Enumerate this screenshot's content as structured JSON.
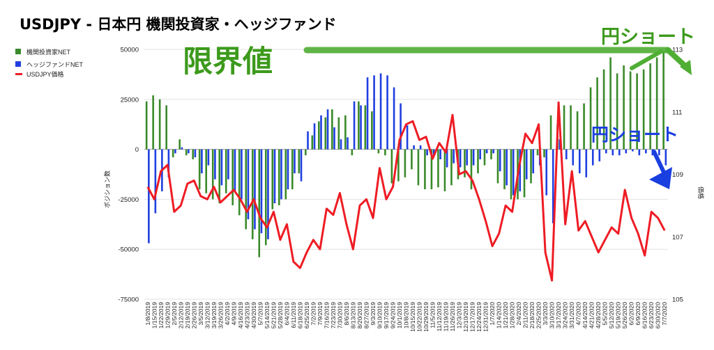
{
  "title": "USDJPY - 日本円 機関投資家・ヘッジファンド",
  "legend": [
    {
      "label": "機関投資家NET",
      "color": "#3a8a2a"
    },
    {
      "label": "ヘッジファンドNET",
      "color": "#1f3fe0"
    },
    {
      "label": "USDJPY価格",
      "color": "#ee1c24"
    }
  ],
  "annotations": {
    "limit": "限界値",
    "yen_short_green": "円ショート",
    "yen_short_blue": "円ショート"
  },
  "chart_data": {
    "type": "bar+line",
    "y_left": {
      "label": "ポジション数",
      "ylim": [
        -75000,
        50000
      ],
      "ticks": [
        "50000",
        "25000",
        "0",
        "-25000",
        "-50000",
        "-75000"
      ]
    },
    "y_right": {
      "label": "価格",
      "ylim": [
        105,
        113
      ],
      "ticks": [
        "113",
        "111",
        "109",
        "107",
        "105"
      ]
    },
    "x_labels": [
      "1/8/2019",
      "1/15/2019",
      "1/22/2019",
      "1/29/2019",
      "2/5/2019",
      "2/12/2019",
      "2/19/2019",
      "2/26/2019",
      "3/5/2019",
      "3/12/2019",
      "3/19/2019",
      "3/26/2019",
      "4/2/2019",
      "4/9/2019",
      "4/16/2019",
      "4/23/2019",
      "4/30/2019",
      "5/7/2019",
      "5/14/2019",
      "5/21/2019",
      "5/28/2019",
      "6/4/2019",
      "6/11/2019",
      "6/18/2019",
      "6/25/2019",
      "7/2/2019",
      "7/9/2019",
      "7/16/2019",
      "7/23/2019",
      "7/30/2019",
      "8/6/2019",
      "8/13/2019",
      "8/20/2019",
      "8/27/2019",
      "9/3/2019",
      "9/10/2019",
      "9/17/2019",
      "9/24/2019",
      "10/1/2019",
      "10/8/2019",
      "10/15/2019",
      "10/22/2019",
      "10/29/2019",
      "11/5/2019",
      "11/12/2019",
      "11/19/2019",
      "11/26/2019",
      "12/3/2019",
      "12/10/2019",
      "12/17/2019",
      "12/24/2019",
      "12/31/2019",
      "1/7/2020",
      "1/14/2020",
      "1/21/2020",
      "1/28/2020",
      "2/4/2020",
      "2/11/2020",
      "2/18/2020",
      "2/25/2020",
      "3/3/2020",
      "3/10/2020",
      "3/17/2020",
      "3/24/2020",
      "3/31/2020",
      "4/7/2020",
      "4/14/2020",
      "4/21/2020",
      "4/28/2020",
      "5/5/2020",
      "5/12/2020",
      "5/19/2020",
      "5/26/2020",
      "6/2/2020",
      "6/9/2020",
      "6/16/2020",
      "6/23/2020",
      "6/30/2020",
      "7/7/2020"
    ],
    "x_label_step": 1,
    "series": [
      {
        "name": "機関投資家NET",
        "type": "bar",
        "color": "#3a8a2a",
        "values": [
          24000,
          27000,
          25000,
          22000,
          -4000,
          5000,
          -3000,
          -5000,
          -20000,
          -22000,
          -25000,
          -27000,
          -22000,
          -28000,
          -33000,
          -40000,
          -45000,
          -54000,
          -48000,
          -30000,
          -28000,
          -25000,
          -20000,
          -12000,
          -3000,
          7000,
          14000,
          16000,
          20000,
          16000,
          17000,
          -3000,
          24000,
          22000,
          19000,
          -2000,
          -3000,
          -17000,
          -16000,
          -14000,
          -10000,
          -18000,
          -20000,
          -20000,
          -19000,
          -21000,
          -18000,
          -15000,
          -14000,
          -20000,
          -12000,
          -8000,
          -5000,
          -17000,
          -20000,
          -25000,
          -25000,
          -24000,
          -17000,
          -3000,
          -4000,
          17000,
          12000,
          22000,
          22000,
          19000,
          23000,
          31000,
          36000,
          40000,
          46000,
          38000,
          42000,
          39000,
          38000,
          40000,
          43000,
          46000,
          49000
        ]
      },
      {
        "name": "ヘッジファンドNET",
        "type": "bar",
        "color": "#1f3fe0",
        "values": [
          -47000,
          -32000,
          -21000,
          -14000,
          -2000,
          1000,
          -2000,
          -4000,
          -12000,
          -8000,
          -15000,
          -18000,
          -15000,
          -21000,
          -25000,
          -35000,
          -40000,
          -42000,
          -45000,
          -27000,
          -25000,
          -20000,
          -12000,
          -16000,
          9000,
          13000,
          17000,
          20000,
          11000,
          5000,
          6000,
          24000,
          22000,
          36000,
          37000,
          38000,
          37000,
          31000,
          23000,
          12000,
          2000,
          2000,
          -3000,
          -3000,
          -5000,
          -9000,
          -7000,
          -9000,
          -8000,
          -8000,
          -5000,
          -2000,
          -2000,
          -11000,
          -18000,
          -23000,
          -21000,
          -15000,
          -12000,
          -8000,
          -23000,
          -37000,
          5000,
          -5000,
          -8000,
          -12000,
          -14000,
          -8000,
          -6000,
          -2000,
          -3000,
          -3000,
          -2000,
          -1000,
          -3000,
          -2000,
          -3000,
          -3000,
          -8000
        ]
      },
      {
        "name": "USDJPY価格",
        "type": "line",
        "axis": "right",
        "color": "#ee1c24",
        "values": [
          108.6,
          108.2,
          109.1,
          109.3,
          107.8,
          108.0,
          108.7,
          108.8,
          108.3,
          108.2,
          108.6,
          108.1,
          108.3,
          108.5,
          108.2,
          107.8,
          108.2,
          107.6,
          107.3,
          107.8,
          106.9,
          107.4,
          106.2,
          106.0,
          106.5,
          106.9,
          106.6,
          107.9,
          107.7,
          108.4,
          107.4,
          106.6,
          108.0,
          108.2,
          107.6,
          109.2,
          108.2,
          108.6,
          110.1,
          110.6,
          110.7,
          110.1,
          110.2,
          109.5,
          110.0,
          109.7,
          110.9,
          109.0,
          109.1,
          108.8,
          108.2,
          107.5,
          106.7,
          107.1,
          108.0,
          107.8,
          109.2,
          110.3,
          110.0,
          110.6,
          106.5,
          105.6,
          111.3,
          107.4,
          109.1,
          107.2,
          107.5,
          107.0,
          106.5,
          106.9,
          107.3,
          107.1,
          108.5,
          107.6,
          107.1,
          106.4,
          107.8,
          107.6,
          107.2
        ]
      }
    ]
  }
}
